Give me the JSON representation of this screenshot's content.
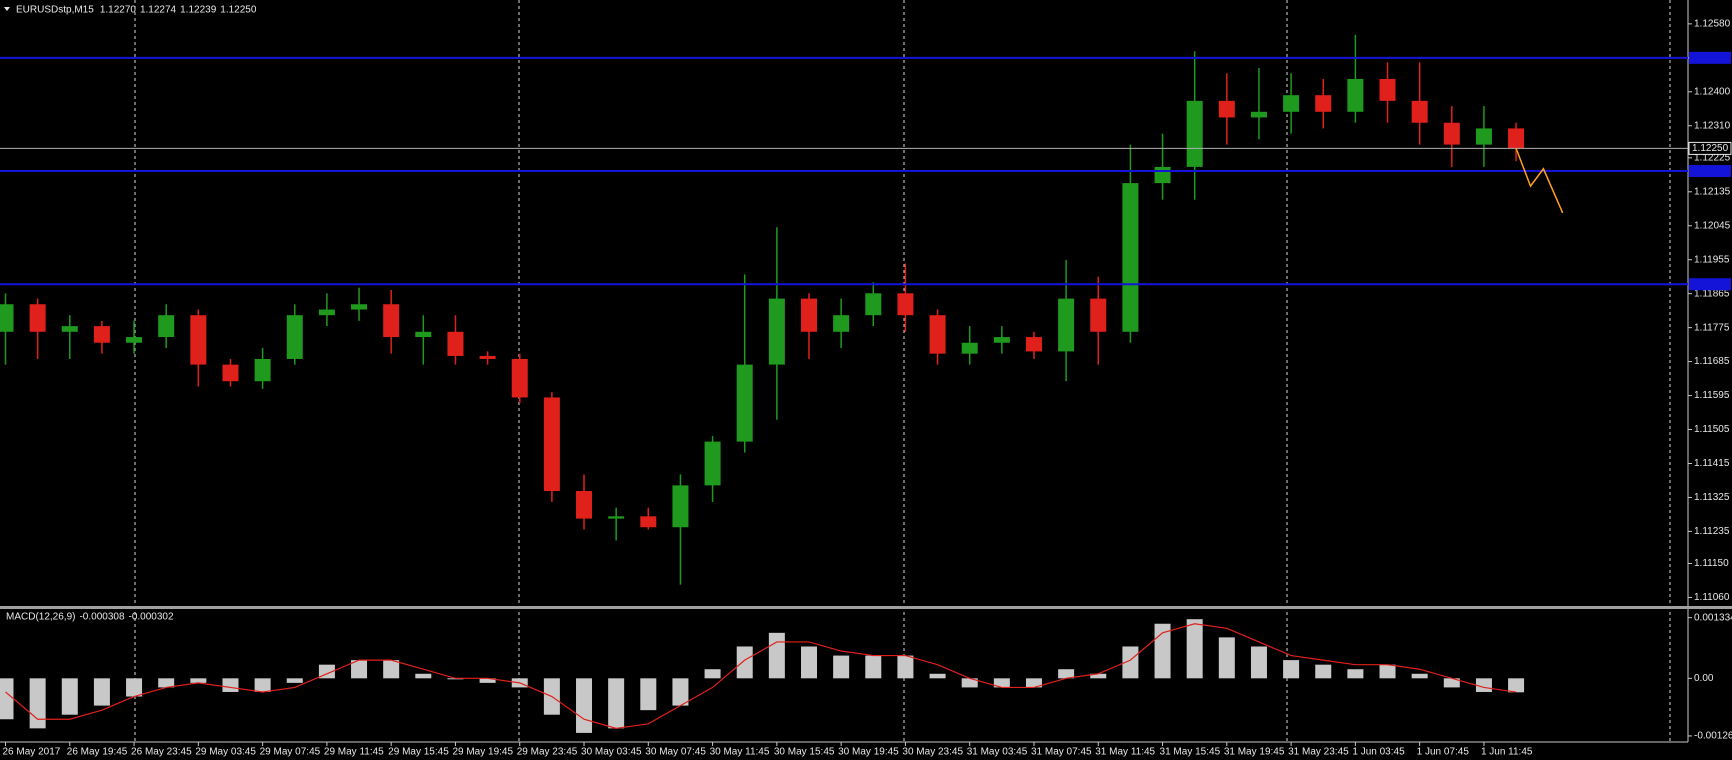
{
  "chart_data": [
    {
      "type": "candlestick",
      "title": "EURUSDstp,M15",
      "categories": [
        "26 May 2017",
        null,
        "26 May 19:45",
        null,
        "26 May 23:45",
        null,
        "29 May 03:45",
        null,
        "29 May 07:45",
        null,
        "29 May 11:45",
        null,
        "29 May 15:45",
        null,
        "29 May 19:45",
        null,
        "29 May 23:45",
        null,
        "30 May 03:45",
        null,
        "30 May 07:45",
        null,
        "30 May 11:45",
        null,
        "30 May 15:45",
        null,
        "30 May 19:45",
        null,
        "30 May 23:45",
        null,
        "31 May 03:45",
        null,
        "31 May 07:45",
        null,
        "31 May 11:45",
        null,
        "31 May 15:45",
        null,
        "31 May 19:45",
        null,
        "31 May 23:45",
        null,
        "1 Jun 03:45",
        null,
        "1 Jun 07:45",
        null,
        "1 Jun 11:45",
        null
      ],
      "open": [
        1.11764,
        1.11837,
        1.11764,
        1.11779,
        1.11735,
        1.1175,
        1.11808,
        1.11677,
        1.11633,
        1.11692,
        1.11808,
        1.11823,
        1.11837,
        1.1175,
        1.11764,
        1.117,
        1.11692,
        1.1159,
        1.11342,
        1.11269,
        1.11275,
        1.11246,
        1.11357,
        1.11473,
        1.11677,
        1.11852,
        1.11764,
        1.11808,
        1.11866,
        1.11808,
        1.11706,
        1.11735,
        1.1175,
        1.11712,
        1.11852,
        1.11764,
        1.12158,
        1.12201,
        1.12376,
        1.12332,
        1.12347,
        1.12391,
        1.12347,
        1.12434,
        1.12376,
        1.12318,
        1.1226,
        1.12303
      ],
      "high": [
        1.11866,
        1.11852,
        1.11808,
        1.11793,
        1.11793,
        1.11837,
        1.11823,
        1.11692,
        1.11721,
        1.11837,
        1.11866,
        1.11881,
        1.11875,
        1.11808,
        1.11808,
        1.11712,
        1.11706,
        1.11604,
        1.11386,
        1.11298,
        1.11298,
        1.11386,
        1.11488,
        1.11916,
        1.12041,
        1.11866,
        1.11852,
        1.11895,
        1.11945,
        1.11823,
        1.11779,
        1.11779,
        1.11764,
        1.11954,
        1.1191,
        1.1226,
        1.12289,
        1.12507,
        1.12449,
        1.12463,
        1.12449,
        1.12434,
        1.12551,
        1.12478,
        1.12478,
        1.12362,
        1.12362,
        1.12318
      ],
      "low": [
        1.11677,
        1.11692,
        1.11692,
        1.11706,
        1.11706,
        1.11721,
        1.11619,
        1.11619,
        1.11613,
        1.11677,
        1.11779,
        1.11793,
        1.11706,
        1.11677,
        1.11677,
        1.11677,
        1.11575,
        1.11313,
        1.1124,
        1.11211,
        1.1124,
        1.11094,
        1.11313,
        1.11444,
        1.11531,
        1.11692,
        1.11721,
        1.11779,
        1.11764,
        1.11677,
        1.11677,
        1.11706,
        1.11692,
        1.11633,
        1.11677,
        1.11735,
        1.12114,
        1.12114,
        1.1226,
        1.12274,
        1.12289,
        1.12303,
        1.12318,
        1.12318,
        1.1226,
        1.12201,
        1.12201,
        1.12216
      ],
      "close": [
        1.11837,
        1.11764,
        1.11779,
        1.11735,
        1.1175,
        1.11808,
        1.11677,
        1.11633,
        1.11692,
        1.11808,
        1.11823,
        1.11837,
        1.1175,
        1.11764,
        1.117,
        1.11692,
        1.1159,
        1.11342,
        1.11269,
        1.11275,
        1.11246,
        1.11357,
        1.11473,
        1.11677,
        1.11852,
        1.11764,
        1.11808,
        1.11866,
        1.11808,
        1.11706,
        1.11735,
        1.1175,
        1.11712,
        1.11852,
        1.11764,
        1.12158,
        1.12201,
        1.12376,
        1.12332,
        1.12347,
        1.12391,
        1.12347,
        1.12434,
        1.12376,
        1.12318,
        1.1226,
        1.12303,
        1.1225
      ],
      "up_color": "#1f9a1f",
      "down_color": "#e0201a",
      "ylim": [
        1.1104,
        1.1263
      ],
      "yticks": [
        {
          "value": 1.1106,
          "label": "1.11060"
        },
        {
          "value": 1.1115,
          "label": "1.11150"
        },
        1.11235,
        1.11325,
        1.11415,
        1.11505,
        1.11595,
        1.11685,
        1.11775,
        1.11865,
        1.11955,
        1.12045,
        1.12135,
        1.12225,
        {
          "value": 1.1231,
          "label": "1.12310"
        },
        {
          "value": 1.124,
          "label": "1.12400"
        },
        {
          "value": 1.1249,
          "label": "1.12490"
        },
        {
          "value": 1.1258,
          "label": "1.12580"
        }
      ],
      "levels": [
        1.1249,
        1.1219,
        1.1189
      ],
      "level_color": "#1414d8",
      "last_bar": {
        "values": [
          1.1227,
          1.12274,
          1.12239,
          1.1225
        ],
        "value_labels": [
          "1.12270",
          "1.12274",
          "1.12239",
          "1.12250"
        ]
      },
      "forecast": {
        "x": [
          47,
          47.45,
          47.85,
          48.45
        ],
        "values": [
          1.1225,
          1.1215,
          1.12196,
          1.12079
        ],
        "color": "#ffa020"
      }
    },
    {
      "type": "macd",
      "title": "MACD(12,26,9)",
      "histogram": [
        -0.0009,
        -0.0011,
        -0.0008,
        -0.0006,
        -0.0004,
        -0.0002,
        -0.0001,
        -0.0003,
        -0.0003,
        -0.0001,
        0.0003,
        0.0004,
        0.0004,
        0.0001,
        0,
        -0.0001,
        -0.0002,
        -0.0008,
        -0.0012,
        -0.0011,
        -0.0007,
        -0.0006,
        0.0002,
        0.0007,
        0.001,
        0.0007,
        0.0005,
        0.0005,
        0.0005,
        0.0001,
        -0.0002,
        -0.0002,
        -0.0002,
        0.0002,
        0.0001,
        0.0007,
        0.0012,
        0.0013,
        0.0009,
        0.0007,
        0.0004,
        0.0003,
        0.0002,
        0.0003,
        0.0001,
        -0.0002,
        -0.0003,
        -0.000308
      ],
      "signal": [
        -0.0003,
        -0.0009,
        -0.0009,
        -0.0007,
        -0.0004,
        -0.0002,
        -0.0001,
        -0.0002,
        -0.0003,
        -0.0002,
        0.0001,
        0.0004,
        0.0004,
        0.0002,
        0,
        0,
        -0.0001,
        -0.0004,
        -0.0009,
        -0.0011,
        -0.001,
        -0.0006,
        -0.0002,
        0.0004,
        0.0008,
        0.0008,
        0.0006,
        0.0005,
        0.0005,
        0.0003,
        0,
        -0.0002,
        -0.0002,
        0,
        0.0001,
        0.0004,
        0.001,
        0.0012,
        0.0011,
        0.0008,
        0.0005,
        0.0004,
        0.0003,
        0.0003,
        0.0002,
        0,
        -0.0002,
        -0.000302
      ],
      "histogram_color": "#c8c8c8",
      "signal_color": "#e0201a",
      "ylim": [
        -0.0014,
        0.00148
      ],
      "yticks": [
        0.001334,
        {
          "value": 0,
          "label": "0.00"
        },
        -0.001267
      ]
    }
  ]
}
